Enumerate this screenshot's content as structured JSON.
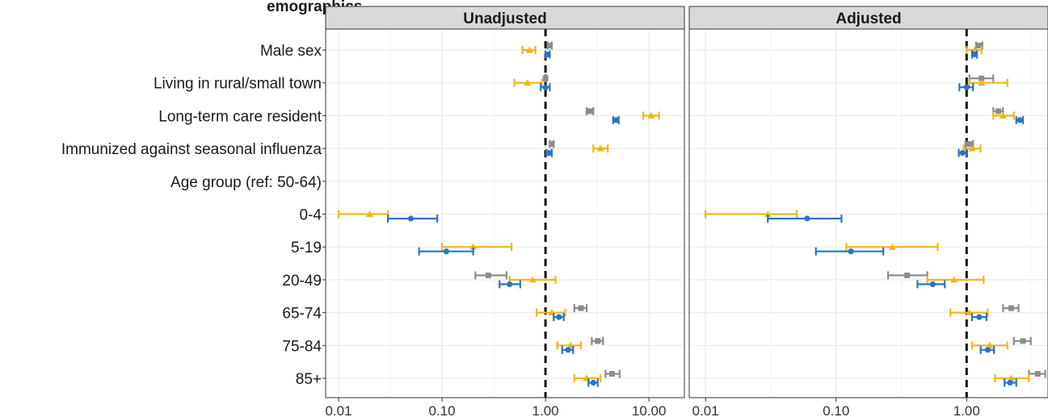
{
  "figure": {
    "top_title_fragment": "emographics,"
  },
  "chart_data": {
    "type": "forest",
    "x_scale": "log10",
    "reference_line": 1.0,
    "colors": {
      "gray": "#8c8c8c",
      "yellow": "#f2b51a",
      "blue": "#2a74c4",
      "strip_bg": "#d9d9d9",
      "grid": "#ebebeb",
      "border": "#333333"
    },
    "rows": [
      "Male sex",
      "Living in rural/small town",
      "Long-term care resident",
      "Immunized against seasonal influenza",
      "Age group (ref: 50-64)",
      "0-4",
      "5-19",
      "20-49",
      "65-74",
      "75-84",
      "85+"
    ],
    "panels": [
      {
        "title": "Unadjusted",
        "xlim": [
          0.0075,
          22
        ],
        "x_ticks": [
          {
            "value": 0.01,
            "label": "0.01"
          },
          {
            "value": 0.1,
            "label": "0.10"
          },
          {
            "value": 1,
            "label": "1.00"
          },
          {
            "value": 10,
            "label": "10.00"
          }
        ],
        "series": [
          {
            "color": "gray",
            "marker": "square",
            "offset": -1,
            "points": [
              {
                "row": 0,
                "est": 1.1,
                "lo": 1.05,
                "hi": 1.15
              },
              {
                "row": 1,
                "est": 1.0,
                "lo": 0.98,
                "hi": 1.02
              },
              {
                "row": 2,
                "est": 2.7,
                "lo": 2.5,
                "hi": 2.9
              },
              {
                "row": 3,
                "est": 1.15,
                "lo": 1.1,
                "hi": 1.2
              },
              {
                "row": 7,
                "est": 0.28,
                "lo": 0.21,
                "hi": 0.42
              },
              {
                "row": 8,
                "est": 2.2,
                "lo": 1.9,
                "hi": 2.5
              },
              {
                "row": 9,
                "est": 3.2,
                "lo": 2.8,
                "hi": 3.6
              },
              {
                "row": 10,
                "est": 4.4,
                "lo": 3.8,
                "hi": 5.2
              }
            ]
          },
          {
            "color": "yellow",
            "marker": "triangle",
            "offset": 0,
            "points": [
              {
                "row": 0,
                "est": 0.7,
                "lo": 0.6,
                "hi": 0.8
              },
              {
                "row": 1,
                "est": 0.67,
                "lo": 0.5,
                "hi": 0.92
              },
              {
                "row": 2,
                "est": 10.5,
                "lo": 8.8,
                "hi": 12.5
              },
              {
                "row": 3,
                "est": 3.4,
                "lo": 2.9,
                "hi": 4.0
              },
              {
                "row": 5,
                "est": 0.02,
                "lo": 0.01,
                "hi": 0.03
              },
              {
                "row": 6,
                "est": 0.2,
                "lo": 0.1,
                "hi": 0.47
              },
              {
                "row": 7,
                "est": 0.75,
                "lo": 0.45,
                "hi": 1.25
              },
              {
                "row": 8,
                "est": 1.15,
                "lo": 0.82,
                "hi": 1.55
              },
              {
                "row": 9,
                "est": 1.75,
                "lo": 1.3,
                "hi": 2.2
              },
              {
                "row": 10,
                "est": 2.5,
                "lo": 1.9,
                "hi": 3.4
              }
            ]
          },
          {
            "color": "blue",
            "marker": "circle",
            "offset": 1,
            "points": [
              {
                "row": 0,
                "est": 1.05,
                "lo": 1.0,
                "hi": 1.1
              },
              {
                "row": 1,
                "est": 1.0,
                "lo": 0.9,
                "hi": 1.1
              },
              {
                "row": 2,
                "est": 4.8,
                "lo": 4.5,
                "hi": 5.1
              },
              {
                "row": 3,
                "est": 1.08,
                "lo": 1.02,
                "hi": 1.15
              },
              {
                "row": 5,
                "est": 0.05,
                "lo": 0.03,
                "hi": 0.09
              },
              {
                "row": 6,
                "est": 0.11,
                "lo": 0.06,
                "hi": 0.2
              },
              {
                "row": 7,
                "est": 0.45,
                "lo": 0.36,
                "hi": 0.57
              },
              {
                "row": 8,
                "est": 1.35,
                "lo": 1.2,
                "hi": 1.5
              },
              {
                "row": 9,
                "est": 1.65,
                "lo": 1.45,
                "hi": 1.85
              },
              {
                "row": 10,
                "est": 2.9,
                "lo": 2.6,
                "hi": 3.2
              }
            ]
          }
        ]
      },
      {
        "title": "Adjusted",
        "xlim": [
          0.0075,
          4.2
        ],
        "x_ticks": [
          {
            "value": 0.01,
            "label": "0.01"
          },
          {
            "value": 0.1,
            "label": "0.10"
          },
          {
            "value": 1,
            "label": "1.00"
          }
        ],
        "series": [
          {
            "color": "gray",
            "marker": "square",
            "offset": -1,
            "points": [
              {
                "row": 0,
                "est": 1.25,
                "lo": 1.18,
                "hi": 1.32
              },
              {
                "row": 1,
                "est": 1.3,
                "lo": 1.05,
                "hi": 1.6
              },
              {
                "row": 2,
                "est": 1.75,
                "lo": 1.6,
                "hi": 1.9
              },
              {
                "row": 3,
                "est": 1.05,
                "lo": 0.98,
                "hi": 1.12
              },
              {
                "row": 7,
                "est": 0.35,
                "lo": 0.25,
                "hi": 0.5
              },
              {
                "row": 8,
                "est": 2.2,
                "lo": 1.9,
                "hi": 2.5
              },
              {
                "row": 9,
                "est": 2.7,
                "lo": 2.3,
                "hi": 3.1
              },
              {
                "row": 10,
                "est": 3.5,
                "lo": 3.0,
                "hi": 4.0
              }
            ]
          },
          {
            "color": "yellow",
            "marker": "triangle",
            "offset": 0,
            "points": [
              {
                "row": 0,
                "est": 1.15,
                "lo": 1.0,
                "hi": 1.3
              },
              {
                "row": 1,
                "est": 1.3,
                "lo": 1.05,
                "hi": 2.05
              },
              {
                "row": 2,
                "est": 1.9,
                "lo": 1.6,
                "hi": 2.3
              },
              {
                "row": 3,
                "est": 1.1,
                "lo": 0.95,
                "hi": 1.28
              },
              {
                "row": 5,
                "est": 0.03,
                "lo": 0.01,
                "hi": 0.05
              },
              {
                "row": 6,
                "est": 0.27,
                "lo": 0.12,
                "hi": 0.6
              },
              {
                "row": 7,
                "est": 0.8,
                "lo": 0.5,
                "hi": 1.35
              },
              {
                "row": 8,
                "est": 1.05,
                "lo": 0.75,
                "hi": 1.45
              },
              {
                "row": 9,
                "est": 1.5,
                "lo": 1.1,
                "hi": 2.05
              },
              {
                "row": 10,
                "est": 2.2,
                "lo": 1.65,
                "hi": 3.0
              }
            ]
          },
          {
            "color": "blue",
            "marker": "circle",
            "offset": 1,
            "points": [
              {
                "row": 0,
                "est": 1.15,
                "lo": 1.1,
                "hi": 1.2
              },
              {
                "row": 1,
                "est": 1.0,
                "lo": 0.88,
                "hi": 1.12
              },
              {
                "row": 2,
                "est": 2.55,
                "lo": 2.4,
                "hi": 2.7
              },
              {
                "row": 3,
                "est": 0.93,
                "lo": 0.87,
                "hi": 1.0
              },
              {
                "row": 5,
                "est": 0.06,
                "lo": 0.03,
                "hi": 0.11
              },
              {
                "row": 6,
                "est": 0.13,
                "lo": 0.07,
                "hi": 0.23
              },
              {
                "row": 7,
                "est": 0.55,
                "lo": 0.42,
                "hi": 0.68
              },
              {
                "row": 8,
                "est": 1.25,
                "lo": 1.1,
                "hi": 1.42
              },
              {
                "row": 9,
                "est": 1.45,
                "lo": 1.28,
                "hi": 1.62
              },
              {
                "row": 10,
                "est": 2.15,
                "lo": 1.95,
                "hi": 2.4
              }
            ]
          }
        ]
      }
    ]
  }
}
